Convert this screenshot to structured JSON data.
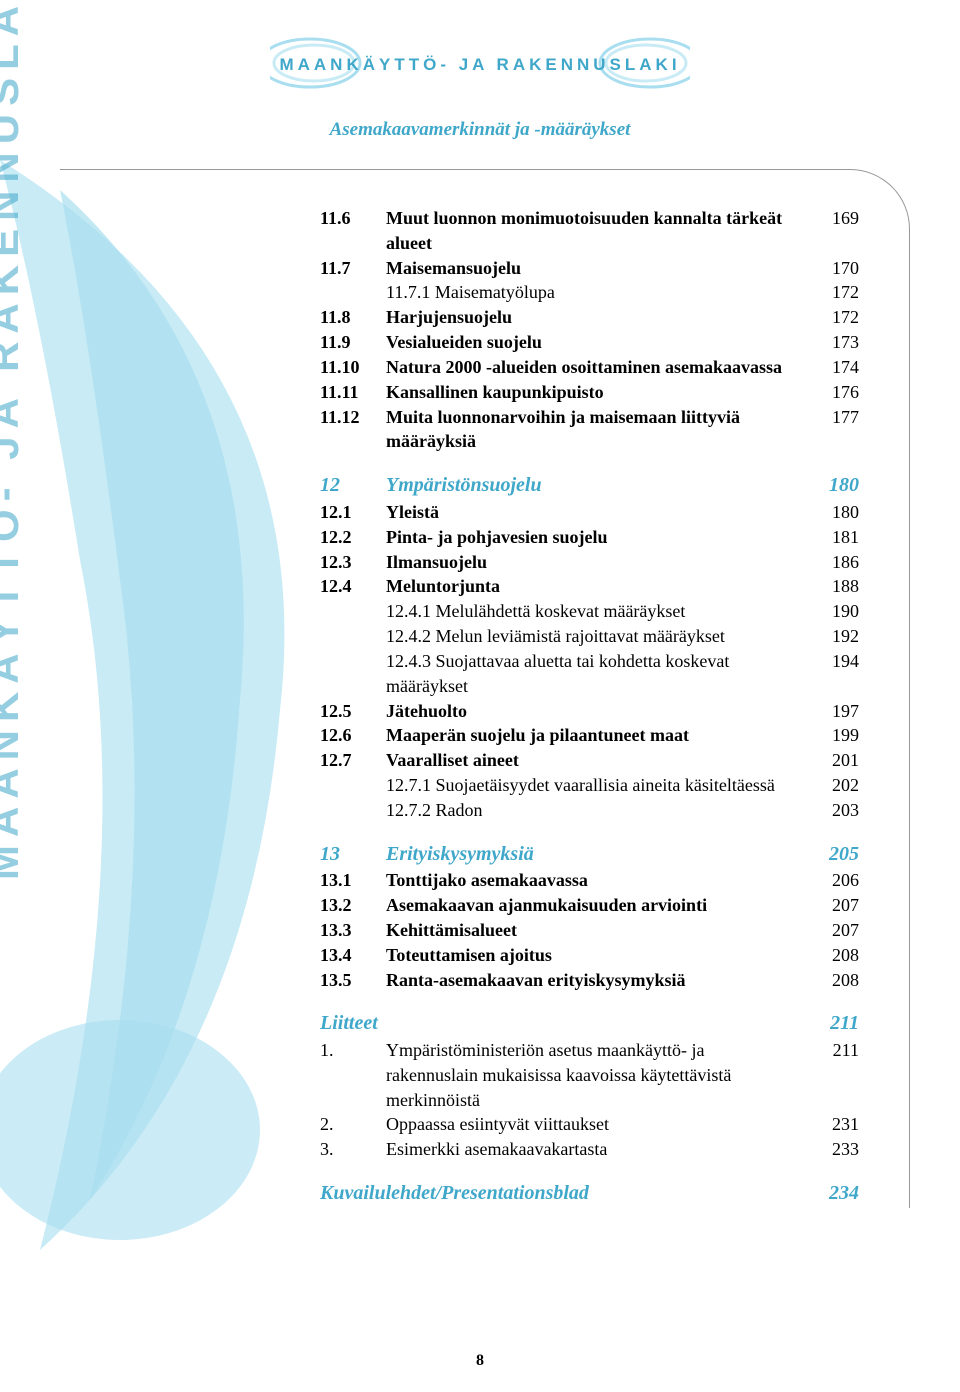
{
  "header": {
    "banner_text": "MAANKÄYTTÖ- JA RAKENNUSLAKI",
    "subtitle": "Asemakaavamerkinnät ja -määräykset"
  },
  "vertical_label": "MAANKÄYTTÖ- JA RAKENNUSLAKI",
  "colors": {
    "accent": "#3fa7c9",
    "swoosh_light": "#c8ebf5",
    "swoosh_mid": "#a8def0",
    "text": "#000000"
  },
  "page_number": "8",
  "toc": [
    {
      "num": "11.6",
      "text": "Muut luonnon monimuotoisuuden kannalta tärkeät alueet",
      "page": "169",
      "style": "bold"
    },
    {
      "num": "11.7",
      "text": "Maisemansuojelu",
      "page": "170",
      "style": "bold"
    },
    {
      "num": "",
      "text": "11.7.1 Maisematyölupa",
      "page": "172",
      "style": "sub"
    },
    {
      "num": "11.8",
      "text": "Harjujensuojelu",
      "page": "172",
      "style": "bold"
    },
    {
      "num": "11.9",
      "text": "Vesialueiden suojelu",
      "page": "173",
      "style": "bold"
    },
    {
      "num": "11.10",
      "text": "Natura 2000 -alueiden osoittaminen asemakaavassa",
      "page": "174",
      "style": "bold"
    },
    {
      "num": "11.11",
      "text": "Kansallinen kaupunkipuisto",
      "page": "176",
      "style": "bold"
    },
    {
      "num": "11.12",
      "text": "Muita luonnonarvoihin ja maisemaan liittyviä määräyksiä",
      "page": "177",
      "style": "bold"
    },
    {
      "type": "gap"
    },
    {
      "num": "12",
      "text": "Ympäristönsuojelu",
      "page": "180",
      "style": "section"
    },
    {
      "num": "12.1",
      "text": "Yleistä",
      "page": "180",
      "style": "bold"
    },
    {
      "num": "12.2",
      "text": "Pinta- ja pohjavesien suojelu",
      "page": "181",
      "style": "bold"
    },
    {
      "num": "12.3",
      "text": "Ilmansuojelu",
      "page": "186",
      "style": "bold"
    },
    {
      "num": "12.4",
      "text": "Meluntorjunta",
      "page": "188",
      "style": "bold"
    },
    {
      "num": "",
      "text": "12.4.1 Melulähdettä koskevat määräykset",
      "page": "190",
      "style": "sub"
    },
    {
      "num": "",
      "text": "12.4.2 Melun leviämistä rajoittavat määräykset",
      "page": "192",
      "style": "sub"
    },
    {
      "num": "",
      "text": "12.4.3 Suojattavaa aluetta tai kohdetta koskevat määräykset",
      "page": "194",
      "style": "sub"
    },
    {
      "num": "12.5",
      "text": "Jätehuolto",
      "page": "197",
      "style": "bold"
    },
    {
      "num": "12.6",
      "text": "Maaperän suojelu ja pilaantuneet maat",
      "page": "199",
      "style": "bold"
    },
    {
      "num": "12.7",
      "text": "Vaaralliset aineet",
      "page": "201",
      "style": "bold"
    },
    {
      "num": "",
      "text": "12.7.1 Suojaetäisyydet vaarallisia aineita käsiteltäessä",
      "page": "202",
      "style": "sub"
    },
    {
      "num": "",
      "text": "12.7.2 Radon",
      "page": "203",
      "style": "sub"
    },
    {
      "type": "gap"
    },
    {
      "num": "13",
      "text": "Erityiskysymyksiä",
      "page": "205",
      "style": "section"
    },
    {
      "num": "13.1",
      "text": "Tonttijako asemakaavassa",
      "page": "206",
      "style": "bold"
    },
    {
      "num": "13.2",
      "text": "Asemakaavan ajanmukaisuuden arviointi",
      "page": "207",
      "style": "bold"
    },
    {
      "num": "13.3",
      "text": "Kehittämisalueet",
      "page": "207",
      "style": "bold"
    },
    {
      "num": "13.4",
      "text": "Toteuttamisen ajoitus",
      "page": "208",
      "style": "bold"
    },
    {
      "num": "13.5",
      "text": "Ranta-asemakaavan erityiskysymyksiä",
      "page": "208",
      "style": "bold"
    },
    {
      "type": "gap"
    },
    {
      "num": "",
      "text": "Liitteet",
      "page": "211",
      "style": "section-noind"
    },
    {
      "num": "1.",
      "text": "Ympäristöministeriön asetus maankäyttö- ja rakennuslain mukaisissa kaavoissa käytettävistä merkinnöistä",
      "page": "211",
      "style": "sub"
    },
    {
      "num": "2.",
      "text": "Oppaassa esiintyvät viittaukset",
      "page": "231",
      "style": "sub"
    },
    {
      "num": "3.",
      "text": "Esimerkki asemakaavakartasta",
      "page": "233",
      "style": "sub"
    },
    {
      "type": "gap"
    },
    {
      "num": "",
      "text": "Kuvailulehdet/Presentationsblad",
      "page": "234",
      "style": "section-noind"
    }
  ]
}
